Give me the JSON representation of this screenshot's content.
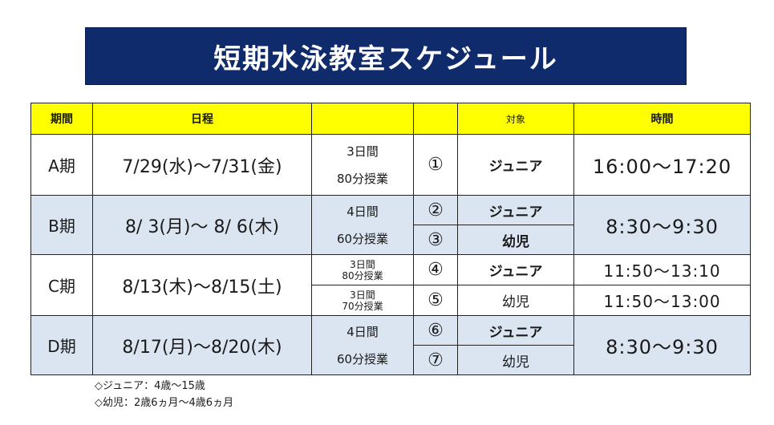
{
  "title": "短期水泳教室スケジュール",
  "headers": {
    "period": "期間",
    "schedule": "日程",
    "lessons": "",
    "number": "",
    "target": "対象",
    "time": "時間"
  },
  "rows": {
    "a": {
      "period": "A期",
      "date": "7/29(水)～7/31(金)",
      "days": "3日間",
      "lessons": "80分授業",
      "num1": "①",
      "target1": "ジュニア",
      "time": "16:00～17:20"
    },
    "b": {
      "period": "B期",
      "date": "8/ 3(月)～ 8/ 6(木)",
      "days": "4日間",
      "lessons": "60分授業",
      "num1": "②",
      "target1": "ジュニア",
      "num2": "③",
      "target2": "幼児",
      "time": "8:30～9:30"
    },
    "c": {
      "period": "C期",
      "date": "8/13(木)～8/15(土)",
      "days1": "3日間",
      "lessons1": "80分授業",
      "days2": "3日間",
      "lessons2": "70分授業",
      "num1": "④",
      "target1": "ジュニア",
      "time1": "11:50～13:10",
      "num2": "⑤",
      "target2": "幼児",
      "time2": "11:50～13:00"
    },
    "d": {
      "period": "D期",
      "date": "8/17(月)～8/20(木)",
      "days": "4日間",
      "lessons": "60分授業",
      "num1": "⑥",
      "target1": "ジュニア",
      "num2": "⑦",
      "target2": "幼児",
      "time": "8:30～9:30"
    }
  },
  "notes": {
    "junior": "◇ジュニア：4歳～15歳",
    "infant": "◇幼児：2歳6ヵ月～4歳6ヵ月"
  },
  "colors": {
    "banner": "#0f2b6b",
    "header": "#ffff00",
    "alt_row": "#dbe5f1"
  }
}
